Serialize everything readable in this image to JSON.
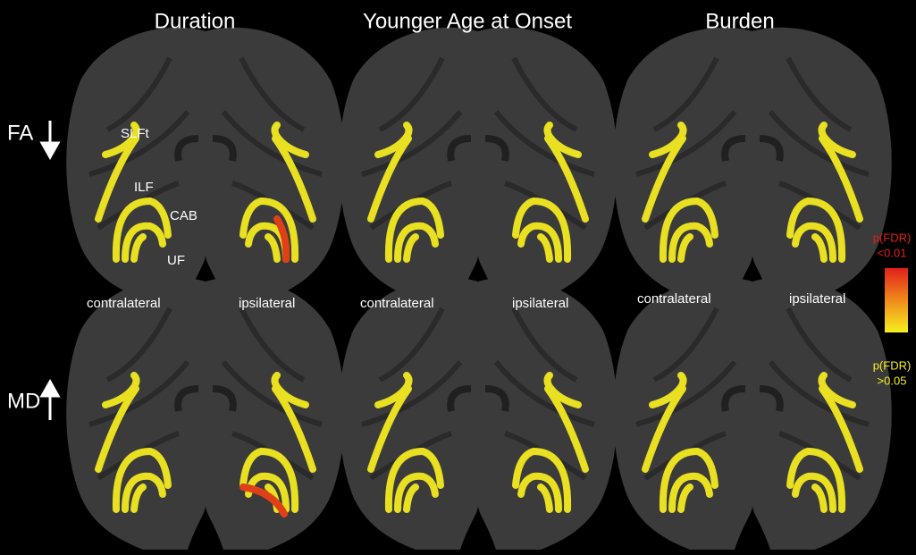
{
  "columns": [
    {
      "title": "Duration"
    },
    {
      "title": "Younger Age at Onset"
    },
    {
      "title": "Burden"
    }
  ],
  "rows": [
    {
      "label": "FA"
    },
    {
      "label": "MD"
    }
  ],
  "tract_labels": [
    "SLFt",
    "ILF",
    "CAB",
    "UF"
  ],
  "side_labels": [
    {
      "left": "contralateral",
      "right": "ipsilateral"
    },
    {
      "left": "contralateral",
      "right": "ipsilateral"
    },
    {
      "left": "contralateral",
      "right": "ipsilateral"
    }
  ],
  "colorbar": {
    "top": [
      "p(FDR)",
      "<0.01"
    ],
    "bottom": [
      "p(FDR)",
      ">0.05"
    ]
  }
}
